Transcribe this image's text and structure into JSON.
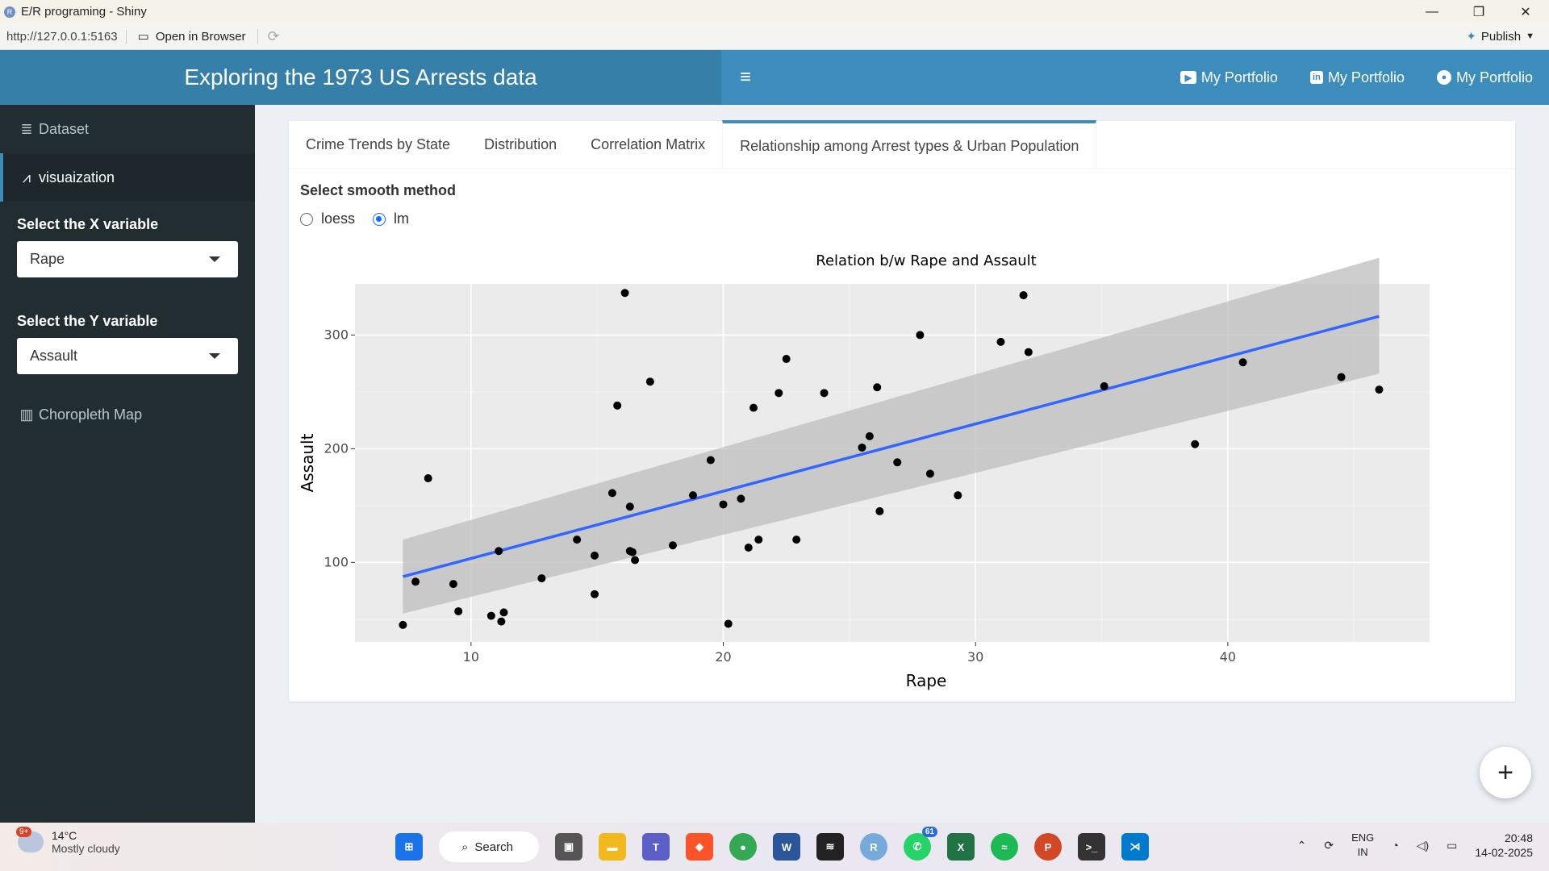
{
  "window": {
    "title": "E/R programing - Shiny",
    "minimize": "—",
    "restore": "❐",
    "close": "✕"
  },
  "addressbar": {
    "url": "http://127.0.0.1:5163",
    "open_in_browser": "Open in Browser",
    "publish": "Publish"
  },
  "header": {
    "title": "Exploring the 1973 US Arrests data",
    "toggle_icon": "hamburger-icon",
    "links": [
      {
        "label": "My Portfolio",
        "icon": "youtube-icon"
      },
      {
        "label": "My Portfolio",
        "icon": "linkedin-icon"
      },
      {
        "label": "My Portfolio",
        "icon": "github-icon"
      }
    ]
  },
  "sidebar": {
    "items": [
      {
        "label": "Dataset",
        "icon": "database-icon"
      },
      {
        "label": "visuaization",
        "icon": "line-chart-icon"
      }
    ],
    "x_label": "Select the X variable",
    "x_value": "Rape",
    "y_label": "Select the Y variable",
    "y_value": "Assault",
    "map_item": {
      "label": "Choropleth Map",
      "icon": "map-icon"
    }
  },
  "tabs": [
    "Crime Trends by State",
    "Distribution",
    "Correlation Matrix",
    "Relationship among Arrest types & Urban Population"
  ],
  "active_tab": 3,
  "smooth": {
    "label": "Select smooth method",
    "options": [
      "loess",
      "lm"
    ],
    "selected": "lm"
  },
  "chart_data": {
    "type": "scatter",
    "title": "Relation b/w Rape and Assault",
    "xlabel": "Rape",
    "ylabel": "Assault",
    "xlim": [
      5.4,
      48.0
    ],
    "ylim": [
      30,
      345
    ],
    "xticks": [
      10,
      20,
      30,
      40
    ],
    "yticks": [
      100,
      200,
      300
    ],
    "grid": true,
    "points": [
      [
        7.3,
        45
      ],
      [
        7.8,
        83
      ],
      [
        8.3,
        174
      ],
      [
        9.3,
        81
      ],
      [
        9.5,
        57
      ],
      [
        10.8,
        53
      ],
      [
        11.1,
        110
      ],
      [
        11.2,
        48
      ],
      [
        11.3,
        56
      ],
      [
        12.8,
        86
      ],
      [
        14.2,
        120
      ],
      [
        14.9,
        72
      ],
      [
        14.9,
        106
      ],
      [
        15.6,
        161
      ],
      [
        15.8,
        238
      ],
      [
        16.1,
        337
      ],
      [
        16.3,
        149
      ],
      [
        16.3,
        110
      ],
      [
        16.4,
        109
      ],
      [
        16.5,
        102
      ],
      [
        17.1,
        259
      ],
      [
        18.0,
        115
      ],
      [
        18.8,
        159
      ],
      [
        19.5,
        190
      ],
      [
        20.0,
        151
      ],
      [
        20.2,
        46
      ],
      [
        20.7,
        156
      ],
      [
        21.0,
        113
      ],
      [
        21.2,
        236
      ],
      [
        21.4,
        120
      ],
      [
        22.2,
        249
      ],
      [
        22.5,
        279
      ],
      [
        22.9,
        120
      ],
      [
        24.0,
        249
      ],
      [
        25.5,
        201
      ],
      [
        25.8,
        211
      ],
      [
        26.1,
        254
      ],
      [
        26.2,
        145
      ],
      [
        26.9,
        188
      ],
      [
        27.8,
        300
      ],
      [
        28.2,
        178
      ],
      [
        29.3,
        159
      ],
      [
        31.0,
        294
      ],
      [
        31.9,
        335
      ],
      [
        32.1,
        285
      ],
      [
        35.1,
        255
      ],
      [
        38.7,
        204
      ],
      [
        40.6,
        276
      ],
      [
        44.5,
        263
      ],
      [
        46.0,
        252
      ]
    ],
    "fit": {
      "method": "lm",
      "x": [
        7.3,
        46.0
      ],
      "y": [
        87.5,
        316.5
      ],
      "ci_lower": [
        55,
        266
      ],
      "ci_upper": [
        120,
        368
      ]
    },
    "colors": {
      "points": "#000000",
      "line": "#3366ff",
      "band": "#bdbdbd",
      "panel": "#ebebeb"
    }
  },
  "fab_label": "+",
  "taskbar": {
    "weather_badge": "9+",
    "temperature": "14°C",
    "condition": "Mostly cloudy",
    "search": "Search",
    "whatsapp_badge": "61",
    "lang1": "ENG",
    "lang2": "IN",
    "time": "20:48",
    "date": "14-02-2025"
  }
}
